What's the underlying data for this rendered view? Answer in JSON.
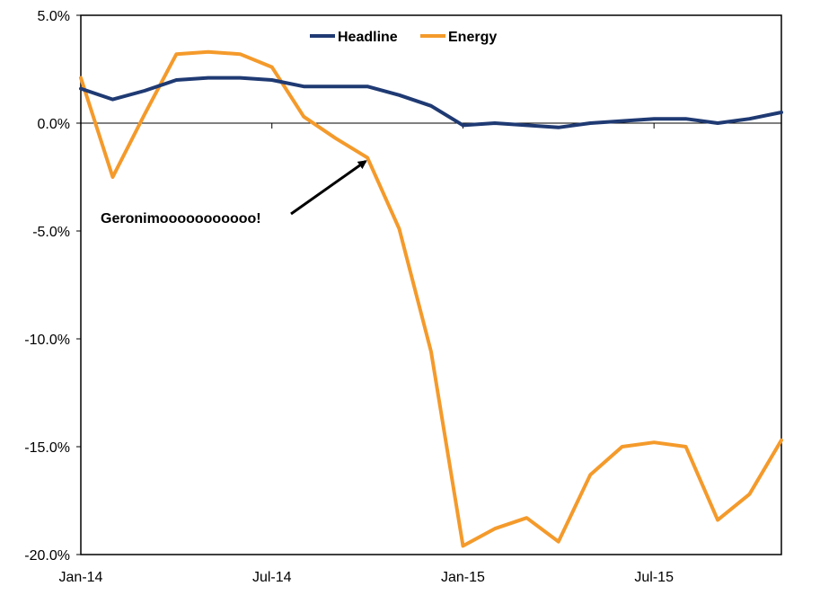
{
  "chart_data": {
    "type": "line",
    "title": "",
    "xlabel": "",
    "ylabel": "",
    "x": [
      "Jan-14",
      "Feb-14",
      "Mar-14",
      "Apr-14",
      "May-14",
      "Jun-14",
      "Jul-14",
      "Aug-14",
      "Sep-14",
      "Oct-14",
      "Nov-14",
      "Dec-14",
      "Jan-15",
      "Feb-15",
      "Mar-15",
      "Apr-15",
      "May-15",
      "Jun-15",
      "Jul-15",
      "Aug-15",
      "Sep-15",
      "Oct-15",
      "Nov-15"
    ],
    "x_tick_labels": [
      "Jan-14",
      "Jul-14",
      "Jan-15",
      "Jul-15"
    ],
    "ylim": [
      -20,
      5
    ],
    "y_ticks": [
      5,
      0,
      -5,
      -10,
      -15,
      -20
    ],
    "y_tick_labels": [
      "5.0%",
      "0.0%",
      "-5.0%",
      "-10.0%",
      "-15.0%",
      "-20.0%"
    ],
    "grid": false,
    "legend_position": "top-center",
    "series": [
      {
        "name": "Headline",
        "color": "#1f3a73",
        "values": [
          1.6,
          1.1,
          1.5,
          2.0,
          2.1,
          2.1,
          2.0,
          1.7,
          1.7,
          1.7,
          1.3,
          0.8,
          -0.1,
          0.0,
          -0.1,
          -0.2,
          0.0,
          0.1,
          0.2,
          0.2,
          0.0,
          0.2,
          0.5
        ]
      },
      {
        "name": "Energy",
        "color": "#f49a2b",
        "values": [
          2.1,
          -2.5,
          0.4,
          3.2,
          3.3,
          3.2,
          2.6,
          0.3,
          -0.7,
          -1.6,
          -4.9,
          -10.6,
          -19.6,
          -18.8,
          -18.3,
          -19.4,
          -16.3,
          -15.0,
          -14.8,
          -15.0,
          -18.4,
          -17.2,
          -14.7
        ]
      }
    ],
    "annotations": [
      {
        "text": "Geronimooooooooooo!",
        "x": "Oct-14",
        "y": -1.6
      }
    ]
  }
}
